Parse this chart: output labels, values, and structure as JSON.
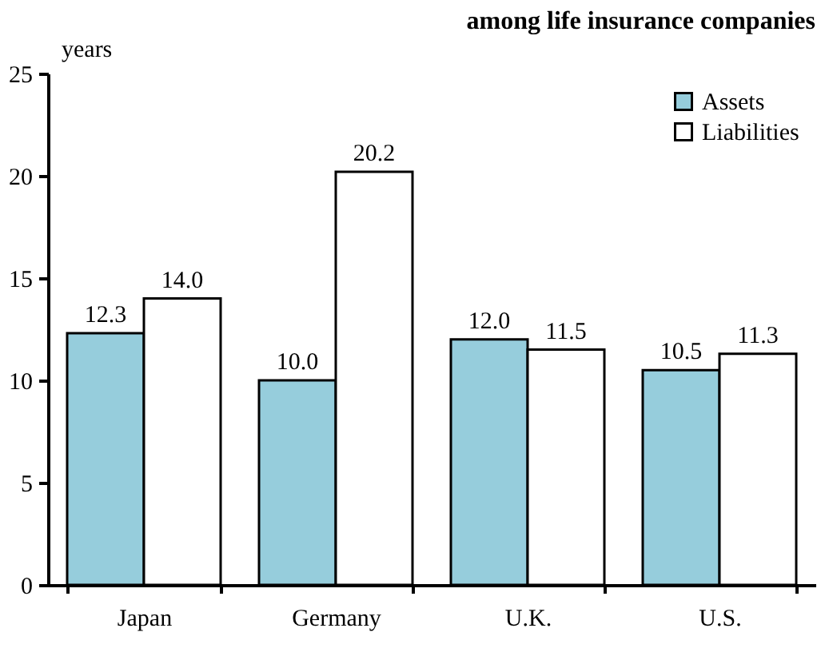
{
  "chart_data": {
    "type": "bar",
    "title": "among life insurance companies",
    "ylabel": "years",
    "categories": [
      "Japan",
      "Germany",
      "U.K.",
      "U.S."
    ],
    "series": [
      {
        "name": "Assets",
        "color": "#96cddc",
        "values": [
          12.3,
          10.0,
          12.0,
          10.5
        ],
        "value_labels": [
          "12.3",
          "10.0",
          "12.0",
          "10.5"
        ]
      },
      {
        "name": "Liabilities",
        "color": "#ffffff",
        "values": [
          14.0,
          20.2,
          11.5,
          11.3
        ],
        "value_labels": [
          "14.0",
          "20.2",
          "11.5",
          "11.3"
        ]
      }
    ],
    "ylim": [
      0,
      25
    ],
    "yticks": [
      0,
      5,
      10,
      15,
      20,
      25
    ],
    "grid": false,
    "legend": "top right"
  }
}
